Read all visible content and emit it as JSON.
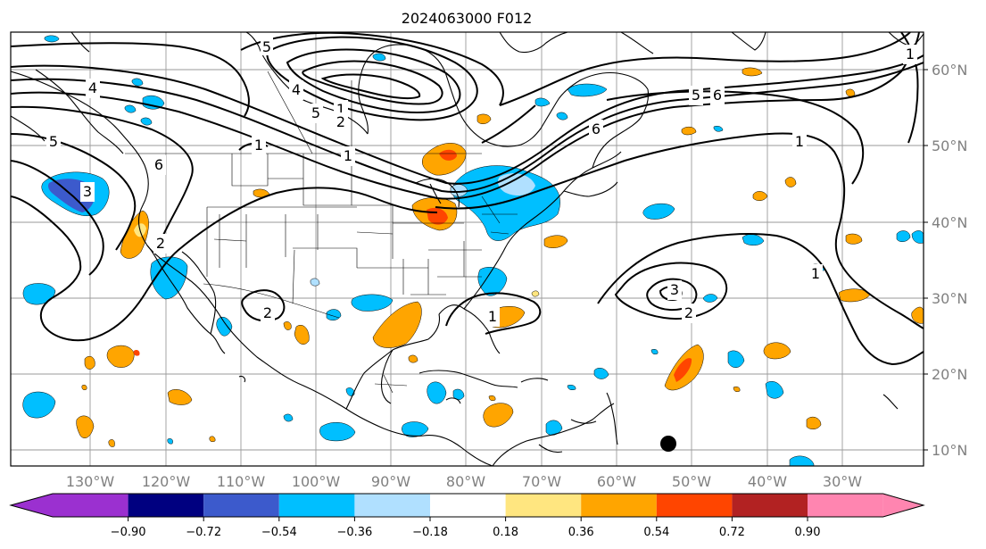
{
  "title": "2024063000 F012",
  "lon_labels": [
    "130°W",
    "120°W",
    "110°W",
    "100°W",
    "90°W",
    "80°W",
    "70°W",
    "60°W",
    "50°W",
    "40°W",
    "30°W"
  ],
  "lat_labels": [
    "60°N",
    "50°N",
    "40°N",
    "30°N",
    "20°N",
    "10°N"
  ],
  "colorbar": {
    "ticks": [
      "−0.90",
      "−0.72",
      "−0.54",
      "−0.36",
      "−0.18",
      "0.18",
      "0.36",
      "0.54",
      "0.72",
      "0.90"
    ],
    "colors": [
      "#9b30d0",
      "#000080",
      "#3c5acc",
      "#00bfff",
      "#b0e0ff",
      "#ffffff",
      "#ffe680",
      "#ffa500",
      "#ff4500",
      "#b22222",
      "#ff85b0"
    ]
  },
  "contour_labels": [
    "5",
    "4",
    "5",
    "3",
    "6",
    "1",
    "2",
    "1",
    "2",
    "1",
    "5",
    "6",
    "1",
    "4",
    "5",
    "6",
    "1",
    "3",
    "2",
    "1",
    "2",
    "1"
  ],
  "colors": {
    "light_blue": "#b0e0ff",
    "blue": "#00bfff",
    "medium_blue": "#3c5acc",
    "navy": "#000080",
    "yellow": "#ffe680",
    "orange": "#ffa500",
    "red_orange": "#ff4500"
  }
}
